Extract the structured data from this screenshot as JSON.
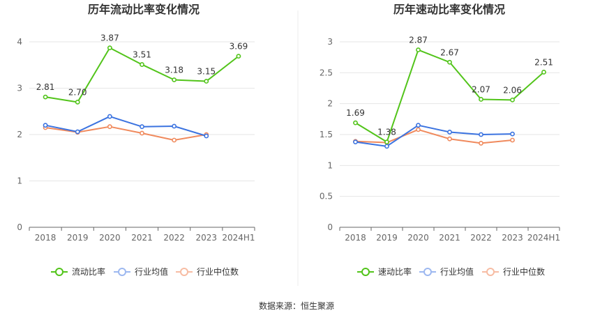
{
  "colors": {
    "primary": "#52c41a",
    "industry_avg": "#3b73e0",
    "industry_median": "#f08a5d",
    "legend_avg": "#9db8f0",
    "legend_median": "#f7bca3",
    "grid": "#e6e6e6",
    "axis": "#666666",
    "divider": "#eeeeee"
  },
  "source_text": "数据来源：恒生聚源",
  "chart_data": [
    {
      "type": "line",
      "title": "历年流动比率变化情况",
      "categories": [
        "2018",
        "2019",
        "2020",
        "2021",
        "2022",
        "2023",
        "2024H1"
      ],
      "ylim": [
        0,
        4
      ],
      "yticks": [
        0,
        1,
        2,
        3,
        4
      ],
      "ytick_labels": [
        "0",
        "1",
        "2",
        "3",
        "4"
      ],
      "legend": [
        "流动比率",
        "行业均值",
        "行业中位数"
      ],
      "series": [
        {
          "name": "流动比率",
          "values": [
            2.81,
            2.7,
            3.87,
            3.51,
            3.18,
            3.15,
            3.69
          ],
          "labels": [
            "2.81",
            "2.70",
            "3.87",
            "3.51",
            "3.18",
            "3.15",
            "3.69"
          ]
        },
        {
          "name": "行业均值",
          "values": [
            2.2,
            2.06,
            2.39,
            2.17,
            2.18,
            1.97,
            null
          ]
        },
        {
          "name": "行业中位数",
          "values": [
            2.15,
            2.05,
            2.17,
            2.03,
            1.88,
            2.0,
            null
          ]
        }
      ]
    },
    {
      "type": "line",
      "title": "历年速动比率变化情况",
      "categories": [
        "2018",
        "2019",
        "2020",
        "2021",
        "2022",
        "2023",
        "2024H1"
      ],
      "ylim": [
        0,
        3
      ],
      "yticks": [
        0,
        0.5,
        1,
        1.5,
        2,
        2.5,
        3
      ],
      "ytick_labels": [
        "0",
        "0.5",
        "1",
        "1.5",
        "2",
        "2.5",
        "3"
      ],
      "legend": [
        "速动比率",
        "行业均值",
        "行业中位数"
      ],
      "series": [
        {
          "name": "速动比率",
          "values": [
            1.69,
            1.38,
            2.87,
            2.67,
            2.07,
            2.06,
            2.51
          ],
          "labels": [
            "1.69",
            "1.38",
            "2.87",
            "2.67",
            "2.07",
            "2.06",
            "2.51"
          ]
        },
        {
          "name": "行业均值",
          "values": [
            1.38,
            1.31,
            1.65,
            1.54,
            1.5,
            1.51,
            null
          ]
        },
        {
          "name": "行业中位数",
          "values": [
            1.39,
            1.37,
            1.58,
            1.43,
            1.36,
            1.41,
            null
          ]
        }
      ]
    }
  ]
}
